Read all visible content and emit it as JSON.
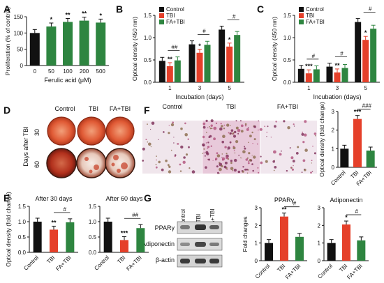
{
  "panels": {
    "A": "A",
    "B": "B",
    "C": "C",
    "D": "D",
    "E": "E",
    "F": "F",
    "G": "G"
  },
  "colors": {
    "Control": "#111111",
    "TBI": "#e5402a",
    "FA+TBI": "#2e8540",
    "A": "#2e8540"
  },
  "chart_data": [
    {
      "id": "A",
      "type": "bar",
      "ylabel": "Proliferation (% of control)",
      "xlabel": "Ferulic acid (μM)",
      "ylim": [
        0,
        150
      ],
      "yticks": [
        0,
        50,
        100,
        150
      ],
      "categories": [
        "0",
        "50",
        "100",
        "200",
        "500"
      ],
      "values": [
        100,
        120,
        134,
        138,
        132
      ],
      "marks": [
        "",
        "*",
        "**",
        "**",
        "*"
      ]
    },
    {
      "id": "B",
      "type": "bar",
      "ylabel": "Optical density (450 nm)",
      "xlabel": "Incubation (days)",
      "ylim": [
        0,
        1.5
      ],
      "yticks": [
        0.0,
        0.5,
        1.0,
        1.5
      ],
      "categories": [
        "1",
        "3",
        "5"
      ],
      "legend": [
        "Control",
        "TBI",
        "FA+TBI"
      ],
      "series": [
        {
          "name": "Control",
          "values": [
            0.48,
            0.85,
            1.18
          ]
        },
        {
          "name": "TBI",
          "values": [
            0.36,
            0.66,
            0.8
          ]
        },
        {
          "name": "FA+TBI",
          "values": [
            0.49,
            0.84,
            1.06
          ]
        }
      ],
      "marks": [
        [
          "",
          "**",
          ""
        ],
        [
          "",
          "*",
          ""
        ],
        [
          "",
          "*",
          ""
        ]
      ],
      "hashes": [
        "##",
        "#",
        "#"
      ]
    },
    {
      "id": "C",
      "type": "bar",
      "ylabel": "Optical density (450 nm)",
      "xlabel": "Incubation (days)",
      "ylim": [
        0,
        1.5
      ],
      "yticks": [
        0.0,
        0.5,
        1.0,
        1.5
      ],
      "categories": [
        "1",
        "3",
        "5"
      ],
      "legend": [
        "Control",
        "TBI",
        "FA+TBI"
      ],
      "series": [
        {
          "name": "Control",
          "values": [
            0.3,
            0.35,
            1.35
          ]
        },
        {
          "name": "TBI",
          "values": [
            0.2,
            0.22,
            0.95
          ]
        },
        {
          "name": "FA+TBI",
          "values": [
            0.29,
            0.32,
            1.2
          ]
        }
      ],
      "marks": [
        [
          "",
          "***",
          ""
        ],
        [
          "",
          "**",
          ""
        ],
        [
          "",
          "*",
          ""
        ]
      ],
      "hashes": [
        "#",
        "#",
        "#"
      ]
    },
    {
      "id": "E1",
      "type": "bar",
      "title": "After 30 days",
      "ylabel": "Optical density (fold change)",
      "ylim": [
        0,
        1.5
      ],
      "yticks": [
        0.0,
        0.5,
        1.0,
        1.5
      ],
      "categories": [
        "Control",
        "TBI",
        "FA+TBI"
      ],
      "values": [
        1.0,
        0.74,
        0.98
      ],
      "marks": [
        "",
        "**",
        ""
      ],
      "hash": "#"
    },
    {
      "id": "E2",
      "type": "bar",
      "title": "After 60 days",
      "ylim": [
        0,
        1.5
      ],
      "yticks": [
        0.0,
        0.5,
        1.0,
        1.5
      ],
      "categories": [
        "Control",
        "TBI",
        "FA+TBI"
      ],
      "values": [
        1.0,
        0.4,
        0.79
      ],
      "marks": [
        "",
        "***",
        ""
      ],
      "hash": "##"
    },
    {
      "id": "F",
      "type": "bar",
      "ylabel": "Optical density (fold change)",
      "ylim": [
        0,
        3
      ],
      "yticks": [
        0,
        1,
        2,
        3
      ],
      "categories": [
        "Control",
        "TBI",
        "FA+TBI"
      ],
      "values": [
        1.0,
        2.6,
        0.9
      ],
      "marks": [
        "",
        "***",
        ""
      ],
      "hash": "###"
    },
    {
      "id": "G1",
      "type": "bar",
      "title": "PPARγ",
      "ylabel": "Fold changes",
      "ylim": [
        0,
        3
      ],
      "yticks": [
        0,
        1,
        2,
        3
      ],
      "categories": [
        "Control",
        "TBI",
        "FA+TBI"
      ],
      "values": [
        1.0,
        2.5,
        1.35
      ],
      "marks": [
        "",
        "**",
        ""
      ],
      "hash": "#"
    },
    {
      "id": "G2",
      "type": "bar",
      "title": "Adiponectin",
      "ylim": [
        0,
        3
      ],
      "yticks": [
        0,
        1,
        2,
        3
      ],
      "categories": [
        "Control",
        "TBI",
        "FA+TBI"
      ],
      "values": [
        1.0,
        2.05,
        1.15
      ],
      "marks": [
        "",
        "*",
        ""
      ],
      "hash": "#"
    }
  ],
  "panelD": {
    "cols": [
      "Control",
      "TBI",
      "FA+TBI"
    ],
    "rows": [
      "30",
      "60"
    ],
    "side": "Days after TBI"
  },
  "panelF": {
    "cols": [
      "Control",
      "TBI",
      "FA+TBI"
    ]
  },
  "panelG_blot": {
    "lanes": [
      "Control",
      "TBI",
      "FA+TBI"
    ],
    "bands": [
      "PPARγ",
      "Adiponectin",
      "β-actin"
    ]
  }
}
